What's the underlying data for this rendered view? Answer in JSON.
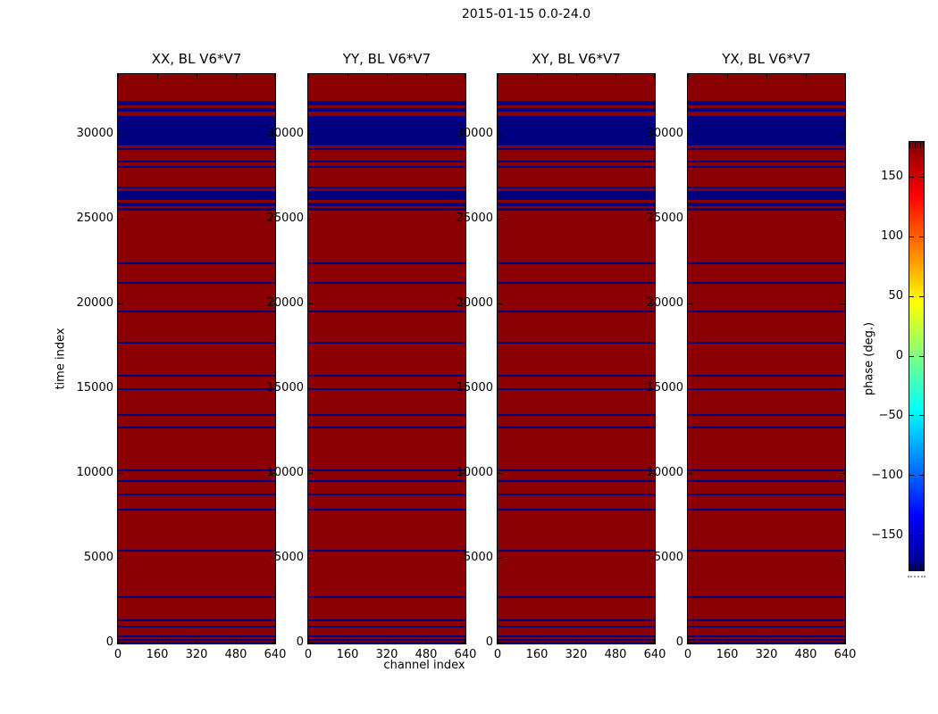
{
  "figure": {
    "suptitle": "2015-01-15 0.0-24.0",
    "background_color": "#ffffff",
    "frame_color": "#000000"
  },
  "chart_data": {
    "type": "heatmap",
    "suptitle": "2015-01-15 0.0-24.0",
    "panels": [
      {
        "title": "XX, BL V6*V7"
      },
      {
        "title": "YY, BL V6*V7"
      },
      {
        "title": "XY, BL V6*V7"
      },
      {
        "title": "YX, BL V6*V7"
      }
    ],
    "xlabel": "channel index",
    "ylabel": "time index",
    "x_ticks": [
      0,
      160,
      320,
      480,
      640
    ],
    "y_ticks": [
      0,
      5000,
      10000,
      15000,
      20000,
      25000,
      30000
    ],
    "xlim": [
      0,
      640
    ],
    "ylim": [
      0,
      33550
    ],
    "grid": false,
    "value_colors": {
      "high_phase_color": "#8b0000",
      "low_phase_color": "#000080"
    },
    "blue_band_time_ranges": [
      [
        0,
        40
      ],
      [
        60,
        120
      ],
      [
        200,
        270
      ],
      [
        370,
        470
      ],
      [
        950,
        1050
      ],
      [
        1300,
        1410
      ],
      [
        2700,
        2810
      ],
      [
        5400,
        5510
      ],
      [
        7850,
        7950
      ],
      [
        8740,
        8850
      ],
      [
        9540,
        9650
      ],
      [
        10150,
        10260
      ],
      [
        12690,
        12800
      ],
      [
        13400,
        13510
      ],
      [
        14930,
        15040
      ],
      [
        15740,
        15850
      ],
      [
        17680,
        17790
      ],
      [
        19520,
        19630
      ],
      [
        21200,
        21320
      ],
      [
        22330,
        22440
      ],
      [
        25510,
        25640
      ],
      [
        25740,
        26000
      ],
      [
        26150,
        26640
      ],
      [
        26840,
        26950
      ],
      [
        28040,
        28160
      ],
      [
        28350,
        28470
      ],
      [
        29090,
        29210
      ],
      [
        29350,
        31100
      ],
      [
        31350,
        31570
      ],
      [
        31720,
        32000
      ]
    ],
    "colorbar": {
      "label": "phase (deg.)",
      "ticks": [
        -150,
        -100,
        -50,
        0,
        50,
        100,
        150
      ],
      "range": [
        -180,
        180
      ],
      "colormap": "jet",
      "tick_side": "left"
    }
  }
}
